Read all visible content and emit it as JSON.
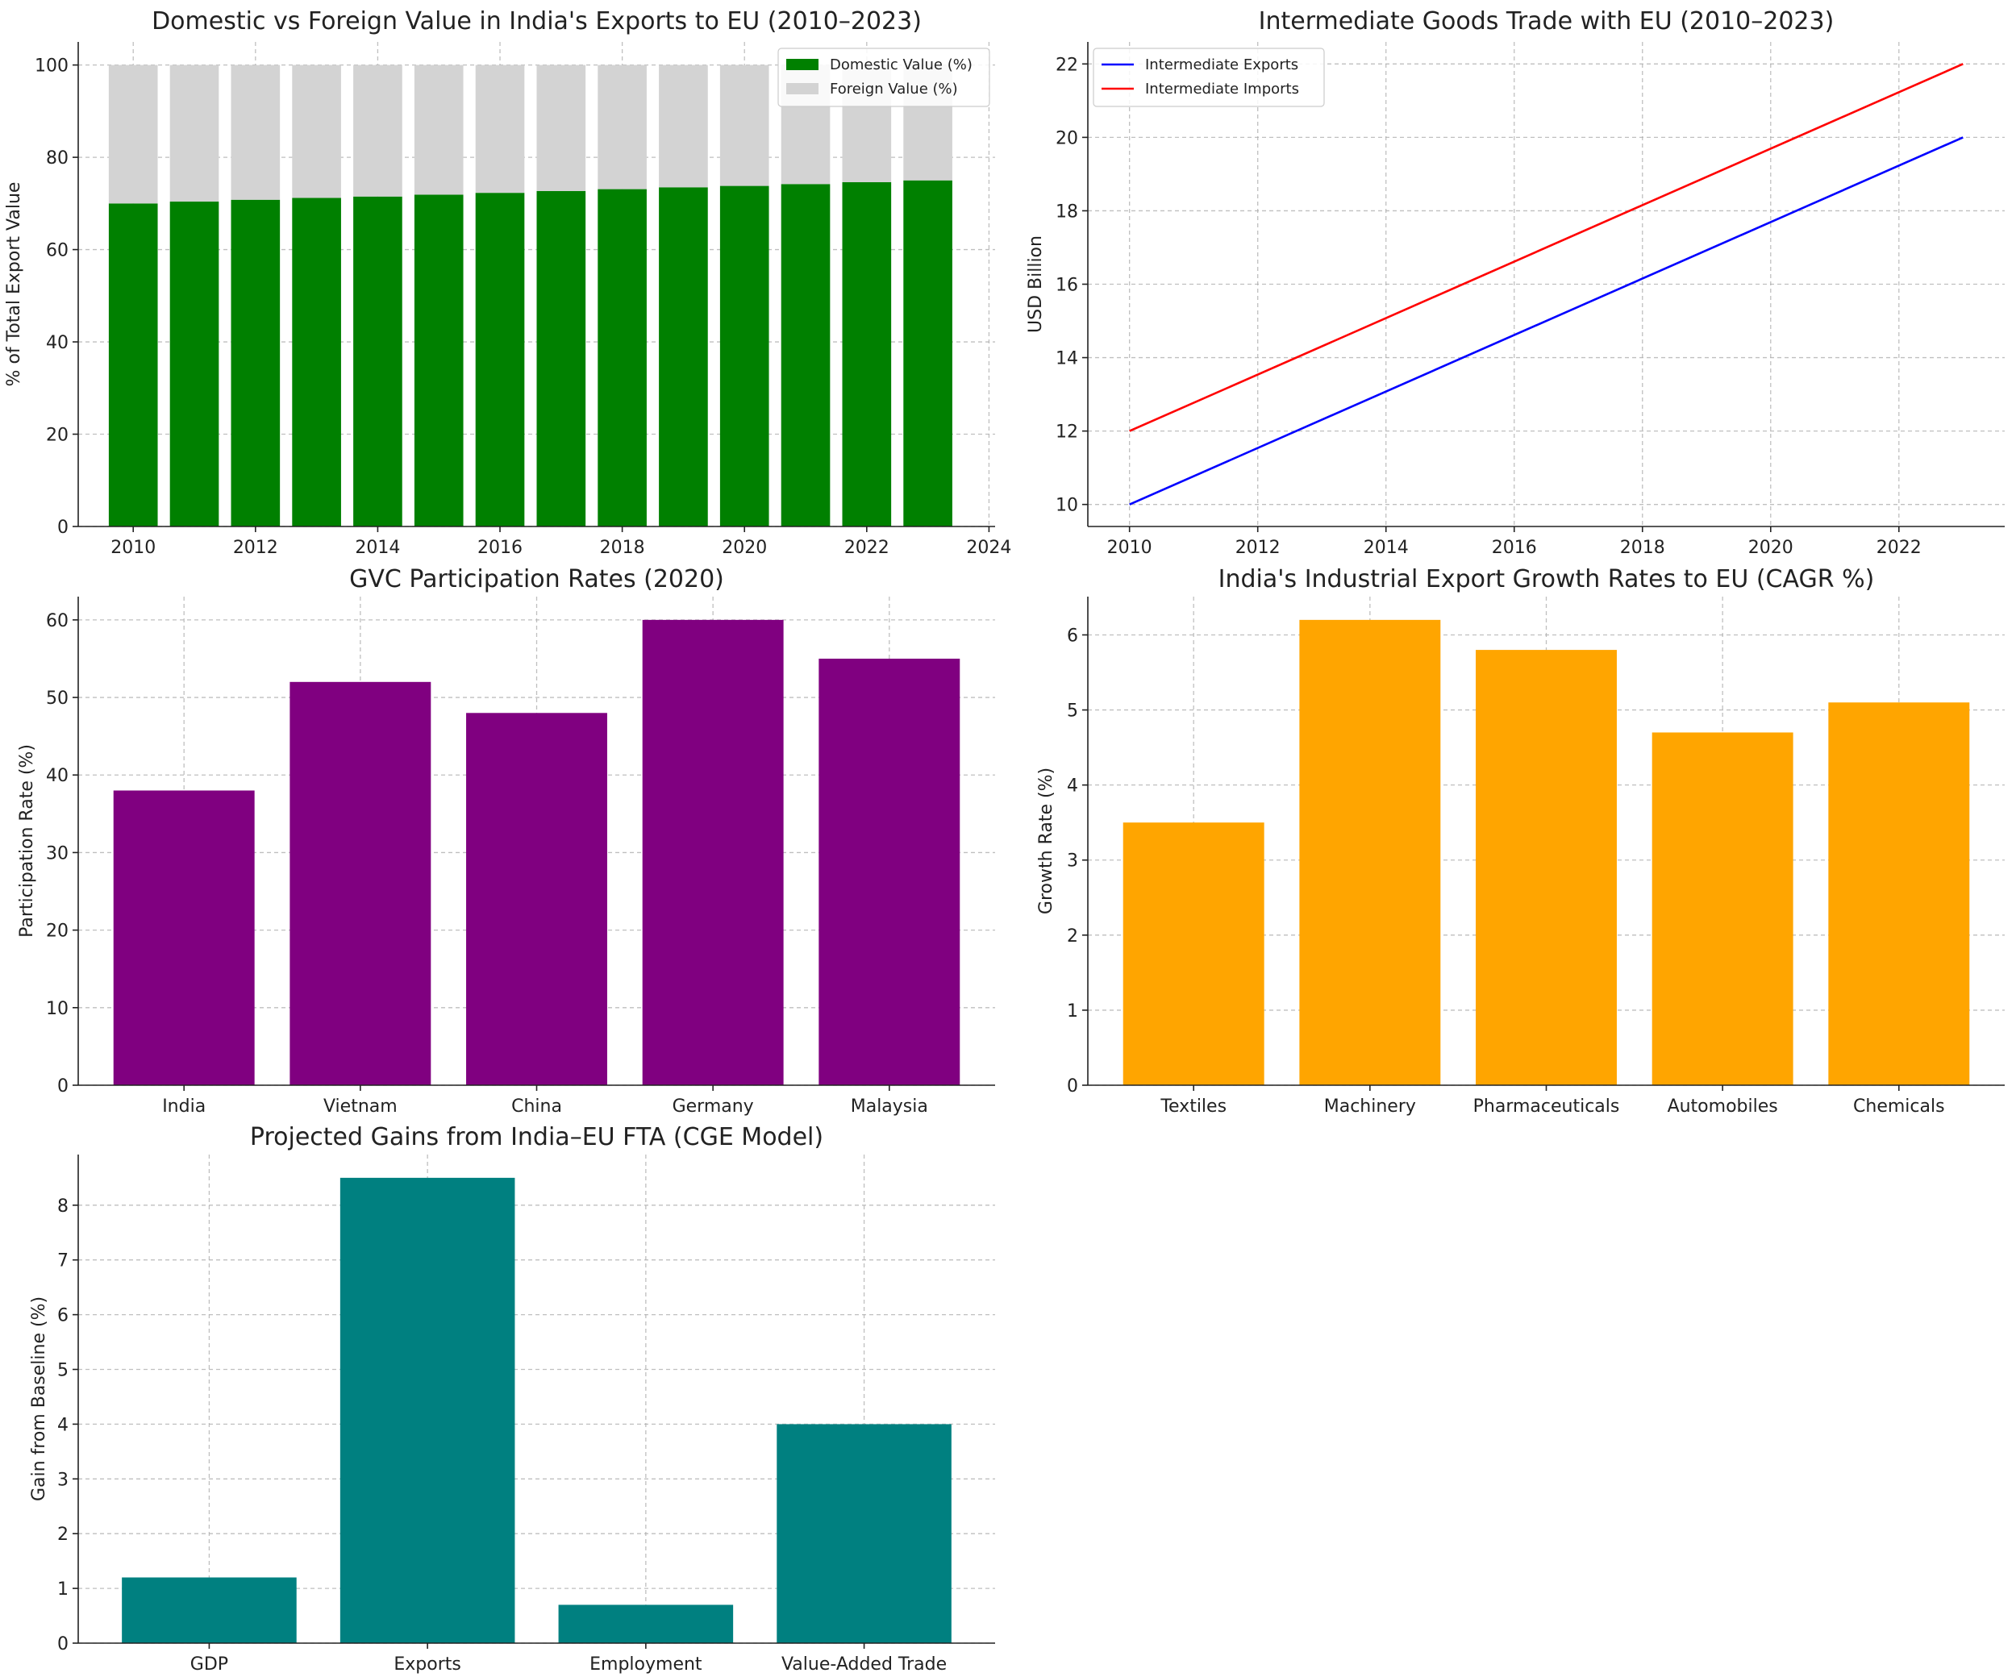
{
  "chart_data": [
    {
      "id": "domestic-foreign",
      "type": "bar",
      "stacked": true,
      "title": "Domestic vs Foreign Value in India's Exports to EU (2010–2023)",
      "xlabel": "",
      "ylabel": "% of Total Export Value",
      "x": [
        2010,
        2011,
        2012,
        2013,
        2014,
        2015,
        2016,
        2017,
        2018,
        2019,
        2020,
        2021,
        2022,
        2023
      ],
      "series": [
        {
          "name": "Domestic Value (%)",
          "color": "#008000",
          "values": [
            70.0,
            70.4,
            70.8,
            71.2,
            71.5,
            71.9,
            72.3,
            72.7,
            73.1,
            73.5,
            73.8,
            74.2,
            74.6,
            75.0
          ]
        },
        {
          "name": "Foreign Value (%)",
          "color": "#d3d3d3",
          "values": [
            30.0,
            29.6,
            29.2,
            28.8,
            28.5,
            28.1,
            27.7,
            27.3,
            26.9,
            26.5,
            26.2,
            25.8,
            25.4,
            25.0
          ]
        }
      ],
      "xlim": [
        2009.1,
        2024.1
      ],
      "ylim": [
        0,
        105
      ],
      "xticks": [
        2010,
        2012,
        2014,
        2016,
        2018,
        2020,
        2022,
        2024
      ],
      "yticks": [
        0,
        20,
        40,
        60,
        80,
        100
      ],
      "grid": true,
      "legend": "upper-right"
    },
    {
      "id": "intermediate-trade",
      "type": "line",
      "title": "Intermediate Goods Trade with EU (2010–2023)",
      "xlabel": "",
      "ylabel": "USD Billion",
      "x": [
        2010,
        2023
      ],
      "series": [
        {
          "name": "Intermediate Exports",
          "color": "#0000ff",
          "values": [
            10,
            20
          ]
        },
        {
          "name": "Intermediate Imports",
          "color": "#ff0000",
          "values": [
            12,
            22
          ]
        }
      ],
      "xlim": [
        2009.35,
        2023.65
      ],
      "ylim": [
        9.4,
        22.6
      ],
      "xticks": [
        2010,
        2012,
        2014,
        2016,
        2018,
        2020,
        2022
      ],
      "yticks": [
        10,
        12,
        14,
        16,
        18,
        20,
        22
      ],
      "grid": true,
      "legend": "upper-left"
    },
    {
      "id": "gvc-participation",
      "type": "bar",
      "title": "GVC Participation Rates (2020)",
      "xlabel": "",
      "ylabel": "Participation Rate (%)",
      "categories": [
        "India",
        "Vietnam",
        "China",
        "Germany",
        "Malaysia"
      ],
      "values": [
        38,
        52,
        48,
        60,
        55
      ],
      "color": "#800080",
      "ylim": [
        0,
        63
      ],
      "yticks": [
        0,
        10,
        20,
        30,
        40,
        50,
        60
      ],
      "grid": true
    },
    {
      "id": "export-growth",
      "type": "bar",
      "title": "India's Industrial Export Growth Rates to EU (CAGR %)",
      "xlabel": "",
      "ylabel": "Growth Rate (%)",
      "categories": [
        "Textiles",
        "Machinery",
        "Pharmaceuticals",
        "Automobiles",
        "Chemicals"
      ],
      "values": [
        3.5,
        6.2,
        5.8,
        4.7,
        5.1
      ],
      "color": "#ffa500",
      "ylim": [
        0,
        6.51
      ],
      "yticks": [
        0,
        1,
        2,
        3,
        4,
        5,
        6
      ],
      "grid": true
    },
    {
      "id": "fta-gains",
      "type": "bar",
      "title": "Projected Gains from India–EU FTA (CGE Model)",
      "xlabel": "",
      "ylabel": "Gain from Baseline (%)",
      "categories": [
        "GDP",
        "Exports",
        "Employment",
        "Value-Added Trade"
      ],
      "values": [
        1.2,
        8.5,
        0.7,
        4.0
      ],
      "color": "#008080",
      "ylim": [
        0,
        8.925
      ],
      "yticks": [
        0,
        1,
        2,
        3,
        4,
        5,
        6,
        7,
        8
      ],
      "grid": true
    }
  ]
}
